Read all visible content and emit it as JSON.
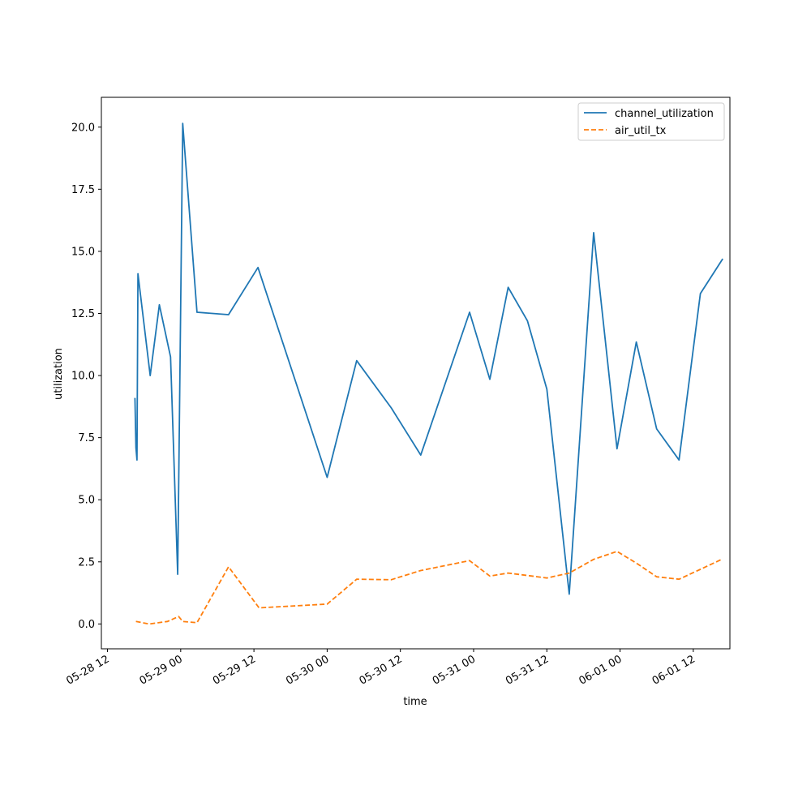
{
  "chart_data": {
    "type": "line",
    "title": "",
    "xlabel": "time",
    "ylabel": "utilization",
    "grid": false,
    "legend_position": "top-right",
    "xlim": [
      "2024-05-28 11:00",
      "2024-06-01 18:00"
    ],
    "ylim": [
      -1.0,
      21.2
    ],
    "x_ticks": [
      {
        "t": "2024-05-28 12:00",
        "label": "05-28 12"
      },
      {
        "t": "2024-05-29 00:00",
        "label": "05-29 00"
      },
      {
        "t": "2024-05-29 12:00",
        "label": "05-29 12"
      },
      {
        "t": "2024-05-30 00:00",
        "label": "05-30 00"
      },
      {
        "t": "2024-05-30 12:00",
        "label": "05-30 12"
      },
      {
        "t": "2024-05-31 00:00",
        "label": "05-31 00"
      },
      {
        "t": "2024-05-31 12:00",
        "label": "05-31 12"
      },
      {
        "t": "2024-06-01 00:00",
        "label": "06-01 00"
      },
      {
        "t": "2024-06-01 12:00",
        "label": "06-01 12"
      }
    ],
    "y_ticks": [
      {
        "v": 0.0,
        "label": "0.0"
      },
      {
        "v": 2.5,
        "label": "2.5"
      },
      {
        "v": 5.0,
        "label": "5.0"
      },
      {
        "v": 7.5,
        "label": "7.5"
      },
      {
        "v": 10.0,
        "label": "10.0"
      },
      {
        "v": 12.5,
        "label": "12.5"
      },
      {
        "v": 15.0,
        "label": "15.0"
      },
      {
        "v": 17.5,
        "label": "17.5"
      },
      {
        "v": 20.0,
        "label": "20.0"
      }
    ],
    "series": [
      {
        "name": "channel_utilization",
        "color": "#1f77b4",
        "style": "solid",
        "points": [
          {
            "t": "2024-05-28 16:30",
            "y": 9.1
          },
          {
            "t": "2024-05-28 16:40",
            "y": 7.1
          },
          {
            "t": "2024-05-28 16:50",
            "y": 6.6
          },
          {
            "t": "2024-05-28 17:00",
            "y": 14.1
          },
          {
            "t": "2024-05-28 19:00",
            "y": 10.0
          },
          {
            "t": "2024-05-28 20:30",
            "y": 12.85
          },
          {
            "t": "2024-05-28 22:20",
            "y": 10.75
          },
          {
            "t": "2024-05-28 23:30",
            "y": 2.0
          },
          {
            "t": "2024-05-29 00:20",
            "y": 20.15
          },
          {
            "t": "2024-05-29 02:40",
            "y": 12.55
          },
          {
            "t": "2024-05-29 07:50",
            "y": 12.45
          },
          {
            "t": "2024-05-29 12:40",
            "y": 14.35
          },
          {
            "t": "2024-05-30 00:00",
            "y": 5.9
          },
          {
            "t": "2024-05-30 04:50",
            "y": 10.6
          },
          {
            "t": "2024-05-30 10:30",
            "y": 8.7
          },
          {
            "t": "2024-05-30 15:20",
            "y": 6.8
          },
          {
            "t": "2024-05-30 23:20",
            "y": 12.55
          },
          {
            "t": "2024-05-31 02:40",
            "y": 9.85
          },
          {
            "t": "2024-05-31 05:40",
            "y": 13.55
          },
          {
            "t": "2024-05-31 08:50",
            "y": 12.2
          },
          {
            "t": "2024-05-31 12:00",
            "y": 9.45
          },
          {
            "t": "2024-05-31 15:40",
            "y": 1.2
          },
          {
            "t": "2024-05-31 19:40",
            "y": 15.75
          },
          {
            "t": "2024-05-31 23:30",
            "y": 7.05
          },
          {
            "t": "2024-06-01 02:40",
            "y": 11.35
          },
          {
            "t": "2024-06-01 06:00",
            "y": 7.85
          },
          {
            "t": "2024-06-01 09:40",
            "y": 6.6
          },
          {
            "t": "2024-06-01 13:10",
            "y": 13.3
          },
          {
            "t": "2024-06-01 16:50",
            "y": 14.7
          }
        ]
      },
      {
        "name": "air_util_tx",
        "color": "#ff7f0e",
        "style": "dashed",
        "points": [
          {
            "t": "2024-05-28 16:40",
            "y": 0.1
          },
          {
            "t": "2024-05-28 18:50",
            "y": 0.0
          },
          {
            "t": "2024-05-28 21:50",
            "y": 0.1
          },
          {
            "t": "2024-05-28 23:40",
            "y": 0.3
          },
          {
            "t": "2024-05-29 00:20",
            "y": 0.1
          },
          {
            "t": "2024-05-29 02:40",
            "y": 0.05
          },
          {
            "t": "2024-05-29 07:50",
            "y": 2.3
          },
          {
            "t": "2024-05-29 12:50",
            "y": 0.65
          },
          {
            "t": "2024-05-30 00:00",
            "y": 0.8
          },
          {
            "t": "2024-05-30 04:50",
            "y": 1.8
          },
          {
            "t": "2024-05-30 10:30",
            "y": 1.78
          },
          {
            "t": "2024-05-30 15:20",
            "y": 2.15
          },
          {
            "t": "2024-05-30 23:20",
            "y": 2.55
          },
          {
            "t": "2024-05-31 02:40",
            "y": 1.93
          },
          {
            "t": "2024-05-31 05:40",
            "y": 2.05
          },
          {
            "t": "2024-05-31 08:50",
            "y": 1.95
          },
          {
            "t": "2024-05-31 12:00",
            "y": 1.85
          },
          {
            "t": "2024-05-31 15:40",
            "y": 2.05
          },
          {
            "t": "2024-05-31 19:40",
            "y": 2.6
          },
          {
            "t": "2024-05-31 23:30",
            "y": 2.92
          },
          {
            "t": "2024-06-01 02:40",
            "y": 2.45
          },
          {
            "t": "2024-06-01 06:00",
            "y": 1.9
          },
          {
            "t": "2024-06-01 09:40",
            "y": 1.8
          },
          {
            "t": "2024-06-01 13:10",
            "y": 2.2
          },
          {
            "t": "2024-06-01 16:50",
            "y": 2.62
          }
        ]
      }
    ]
  }
}
